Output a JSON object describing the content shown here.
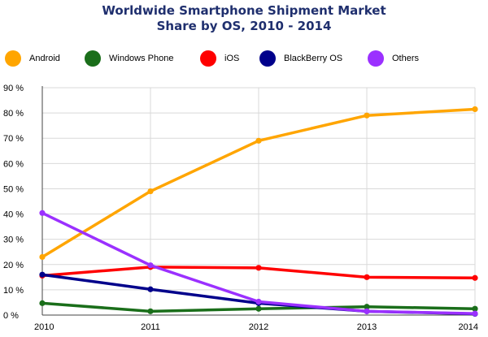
{
  "chart_data": {
    "type": "line",
    "title_line1": "Worldwide Smartphone Shipment Market",
    "title_line2": "Share by OS, 2010 - 2014",
    "x": [
      "2010",
      "2011",
      "2012",
      "2013",
      "2014"
    ],
    "ylim": [
      0,
      90
    ],
    "yticks": [
      "0 %",
      "10 %",
      "20 %",
      "30 %",
      "40 %",
      "50 %",
      "60 %",
      "70 %",
      "80 %",
      "90 %"
    ],
    "grid": true,
    "legend_position": "top",
    "series": [
      {
        "name": "Android",
        "color": "#FFA500",
        "values": [
          23,
          49,
          69,
          79,
          81.5
        ]
      },
      {
        "name": "Windows Phone",
        "color": "#1A6E1A",
        "values": [
          4.7,
          1.5,
          2.5,
          3.3,
          2.5
        ]
      },
      {
        "name": "iOS",
        "color": "#FF0000",
        "values": [
          15.6,
          19,
          18.7,
          15,
          14.7
        ]
      },
      {
        "name": "BlackBerry OS",
        "color": "#00008B",
        "values": [
          16,
          10.2,
          4.7,
          1.5,
          0.5
        ]
      },
      {
        "name": "Others",
        "color": "#9B30FF",
        "values": [
          40.4,
          19.7,
          5.3,
          1.5,
          0.6
        ]
      }
    ]
  }
}
